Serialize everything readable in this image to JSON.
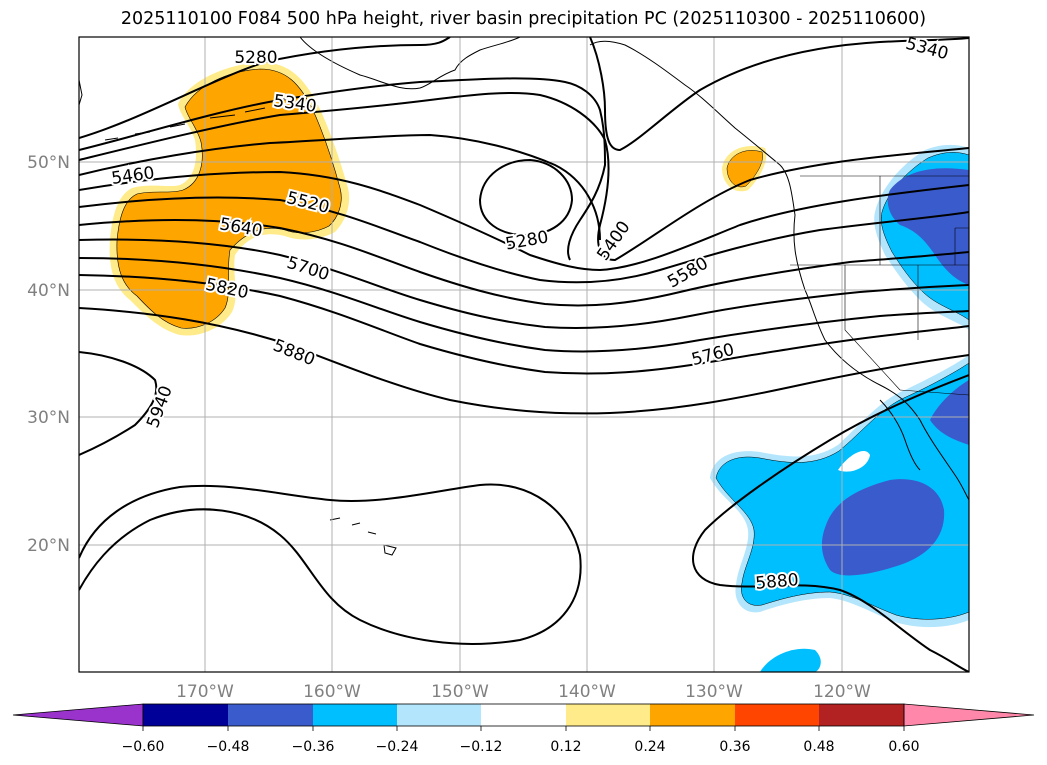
{
  "title": "2025110100 F084 500 hPa height, river basin precipitation PC (2025110300 - 2025110600)",
  "lat_labels": [
    "50°N",
    "40°N",
    "30°N",
    "20°N"
  ],
  "lon_labels": [
    "170°W",
    "160°W",
    "150°W",
    "140°W",
    "130°W",
    "120°W"
  ],
  "contour_labels": {
    "c5280_nw": "5280",
    "c5340_nw": "5340",
    "c5340_ne": "5340",
    "c5460": "5460",
    "c5520": "5520",
    "c5640": "5640",
    "c5700": "5700",
    "c5820": "5820",
    "c5880_w": "5880",
    "c5940": "5940",
    "c5280_low": "5280",
    "c5400": "5400",
    "c5580": "5580",
    "c5760": "5760",
    "c5880_e": "5880"
  },
  "colorbar": {
    "tick_labels": [
      "−0.60",
      "−0.48",
      "−0.36",
      "−0.24",
      "−0.12",
      "0.12",
      "0.24",
      "0.36",
      "0.48",
      "0.60"
    ],
    "colors": [
      "#9933cc",
      "#000099",
      "#3a5bcc",
      "#00bfff",
      "#b3e5fc",
      "#ffffff",
      "#ffeb8a",
      "#ffa500",
      "#ff4500",
      "#b22222",
      "#ff88aa"
    ]
  },
  "colors": {
    "positive_fill": "#ffa500",
    "positive_edge": "#ffeb8a",
    "negative_dark": "#3a5bcc",
    "negative_mid": "#00bfff",
    "negative_light": "#b3e5fc",
    "grid": "#b0b0b0",
    "axis_label": "#808080"
  }
}
